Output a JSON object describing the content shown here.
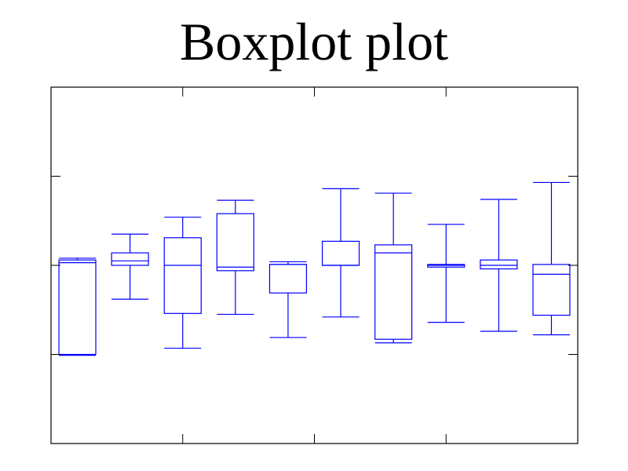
{
  "chart_data": {
    "type": "boxplot",
    "title": "Boxplot plot",
    "xlabel": "",
    "ylabel": "",
    "ylim": [
      -2,
      2
    ],
    "xlim": [
      0.5,
      12.5
    ],
    "y_ticks": [
      -1,
      0,
      1
    ],
    "x_ticks": [
      3.5,
      6.5,
      9.5
    ],
    "show_tick_labels": false,
    "grid": false,
    "box_color": "#0000ff",
    "boxes": [
      {
        "whisker_low": -1.01,
        "q1": -1.0,
        "median": 0.03,
        "q3": 0.06,
        "whisker_high": 0.08
      },
      {
        "whisker_low": -0.38,
        "q1": 0.0,
        "median": 0.05,
        "q3": 0.14,
        "whisker_high": 0.35
      },
      {
        "whisker_low": -0.93,
        "q1": -0.54,
        "median": 0.0,
        "q3": 0.31,
        "whisker_high": 0.54
      },
      {
        "whisker_low": -0.55,
        "q1": -0.06,
        "median": -0.02,
        "q3": 0.58,
        "whisker_high": 0.73
      },
      {
        "whisker_low": -0.81,
        "q1": -0.31,
        "median": 0.01,
        "q3": 0.01,
        "whisker_high": 0.04
      },
      {
        "whisker_low": -0.58,
        "q1": 0.0,
        "median": 0.0,
        "q3": 0.27,
        "whisker_high": 0.86
      },
      {
        "whisker_low": -0.87,
        "q1": -0.83,
        "median": 0.14,
        "q3": 0.23,
        "whisker_high": 0.81
      },
      {
        "whisker_low": -0.64,
        "q1": -0.02,
        "median": 0.0,
        "q3": 0.01,
        "whisker_high": 0.46
      },
      {
        "whisker_low": -0.74,
        "q1": -0.04,
        "median": 0.0,
        "q3": 0.06,
        "whisker_high": 0.74
      },
      {
        "whisker_low": -0.78,
        "q1": -0.56,
        "median": -0.1,
        "q3": 0.01,
        "whisker_high": 0.93
      }
    ]
  }
}
